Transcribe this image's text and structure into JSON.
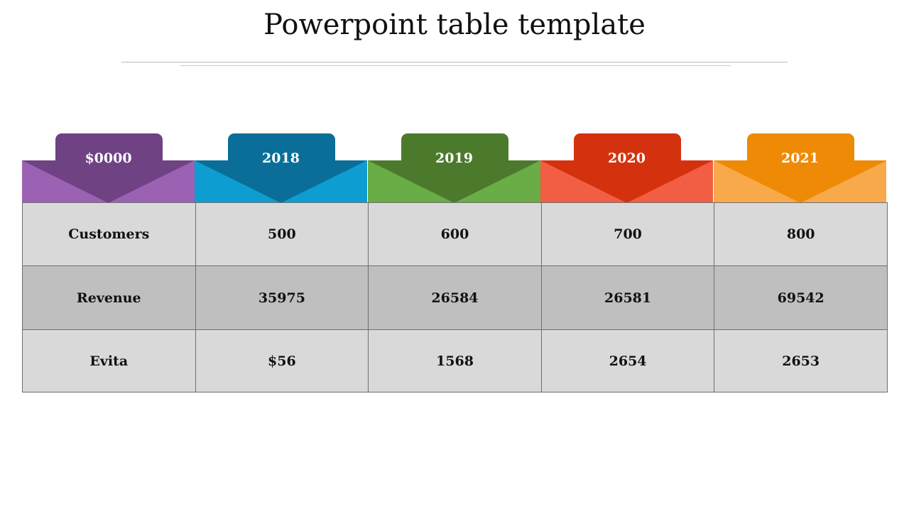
{
  "slide": {
    "title": "Powerpoint table template"
  },
  "headers": [
    {
      "label": "$0000",
      "tab_color": "#6f4284",
      "band_light": "#9b62b4",
      "band_dark": "#6f4284"
    },
    {
      "label": "2018",
      "tab_color": "#0a6e99",
      "band_light": "#0e9dd0",
      "band_dark": "#0a6e99"
    },
    {
      "label": "2019",
      "tab_color": "#4c7a2d",
      "band_light": "#6aac45",
      "band_dark": "#4c7a2d"
    },
    {
      "label": "2020",
      "tab_color": "#d4320e",
      "band_light": "#f25e43",
      "band_dark": "#d4320e"
    },
    {
      "label": "2021",
      "tab_color": "#ee8a05",
      "band_light": "#f8a94a",
      "band_dark": "#ee8a05"
    }
  ],
  "table": {
    "rows": [
      {
        "label": "Customers",
        "values": [
          "500",
          "600",
          "700",
          "800"
        ]
      },
      {
        "label": "Revenue",
        "values": [
          "35975",
          "26584",
          "26581",
          "69542"
        ]
      },
      {
        "label": "Evita",
        "values": [
          "$56",
          "1568",
          "2654",
          "2653"
        ]
      }
    ]
  }
}
